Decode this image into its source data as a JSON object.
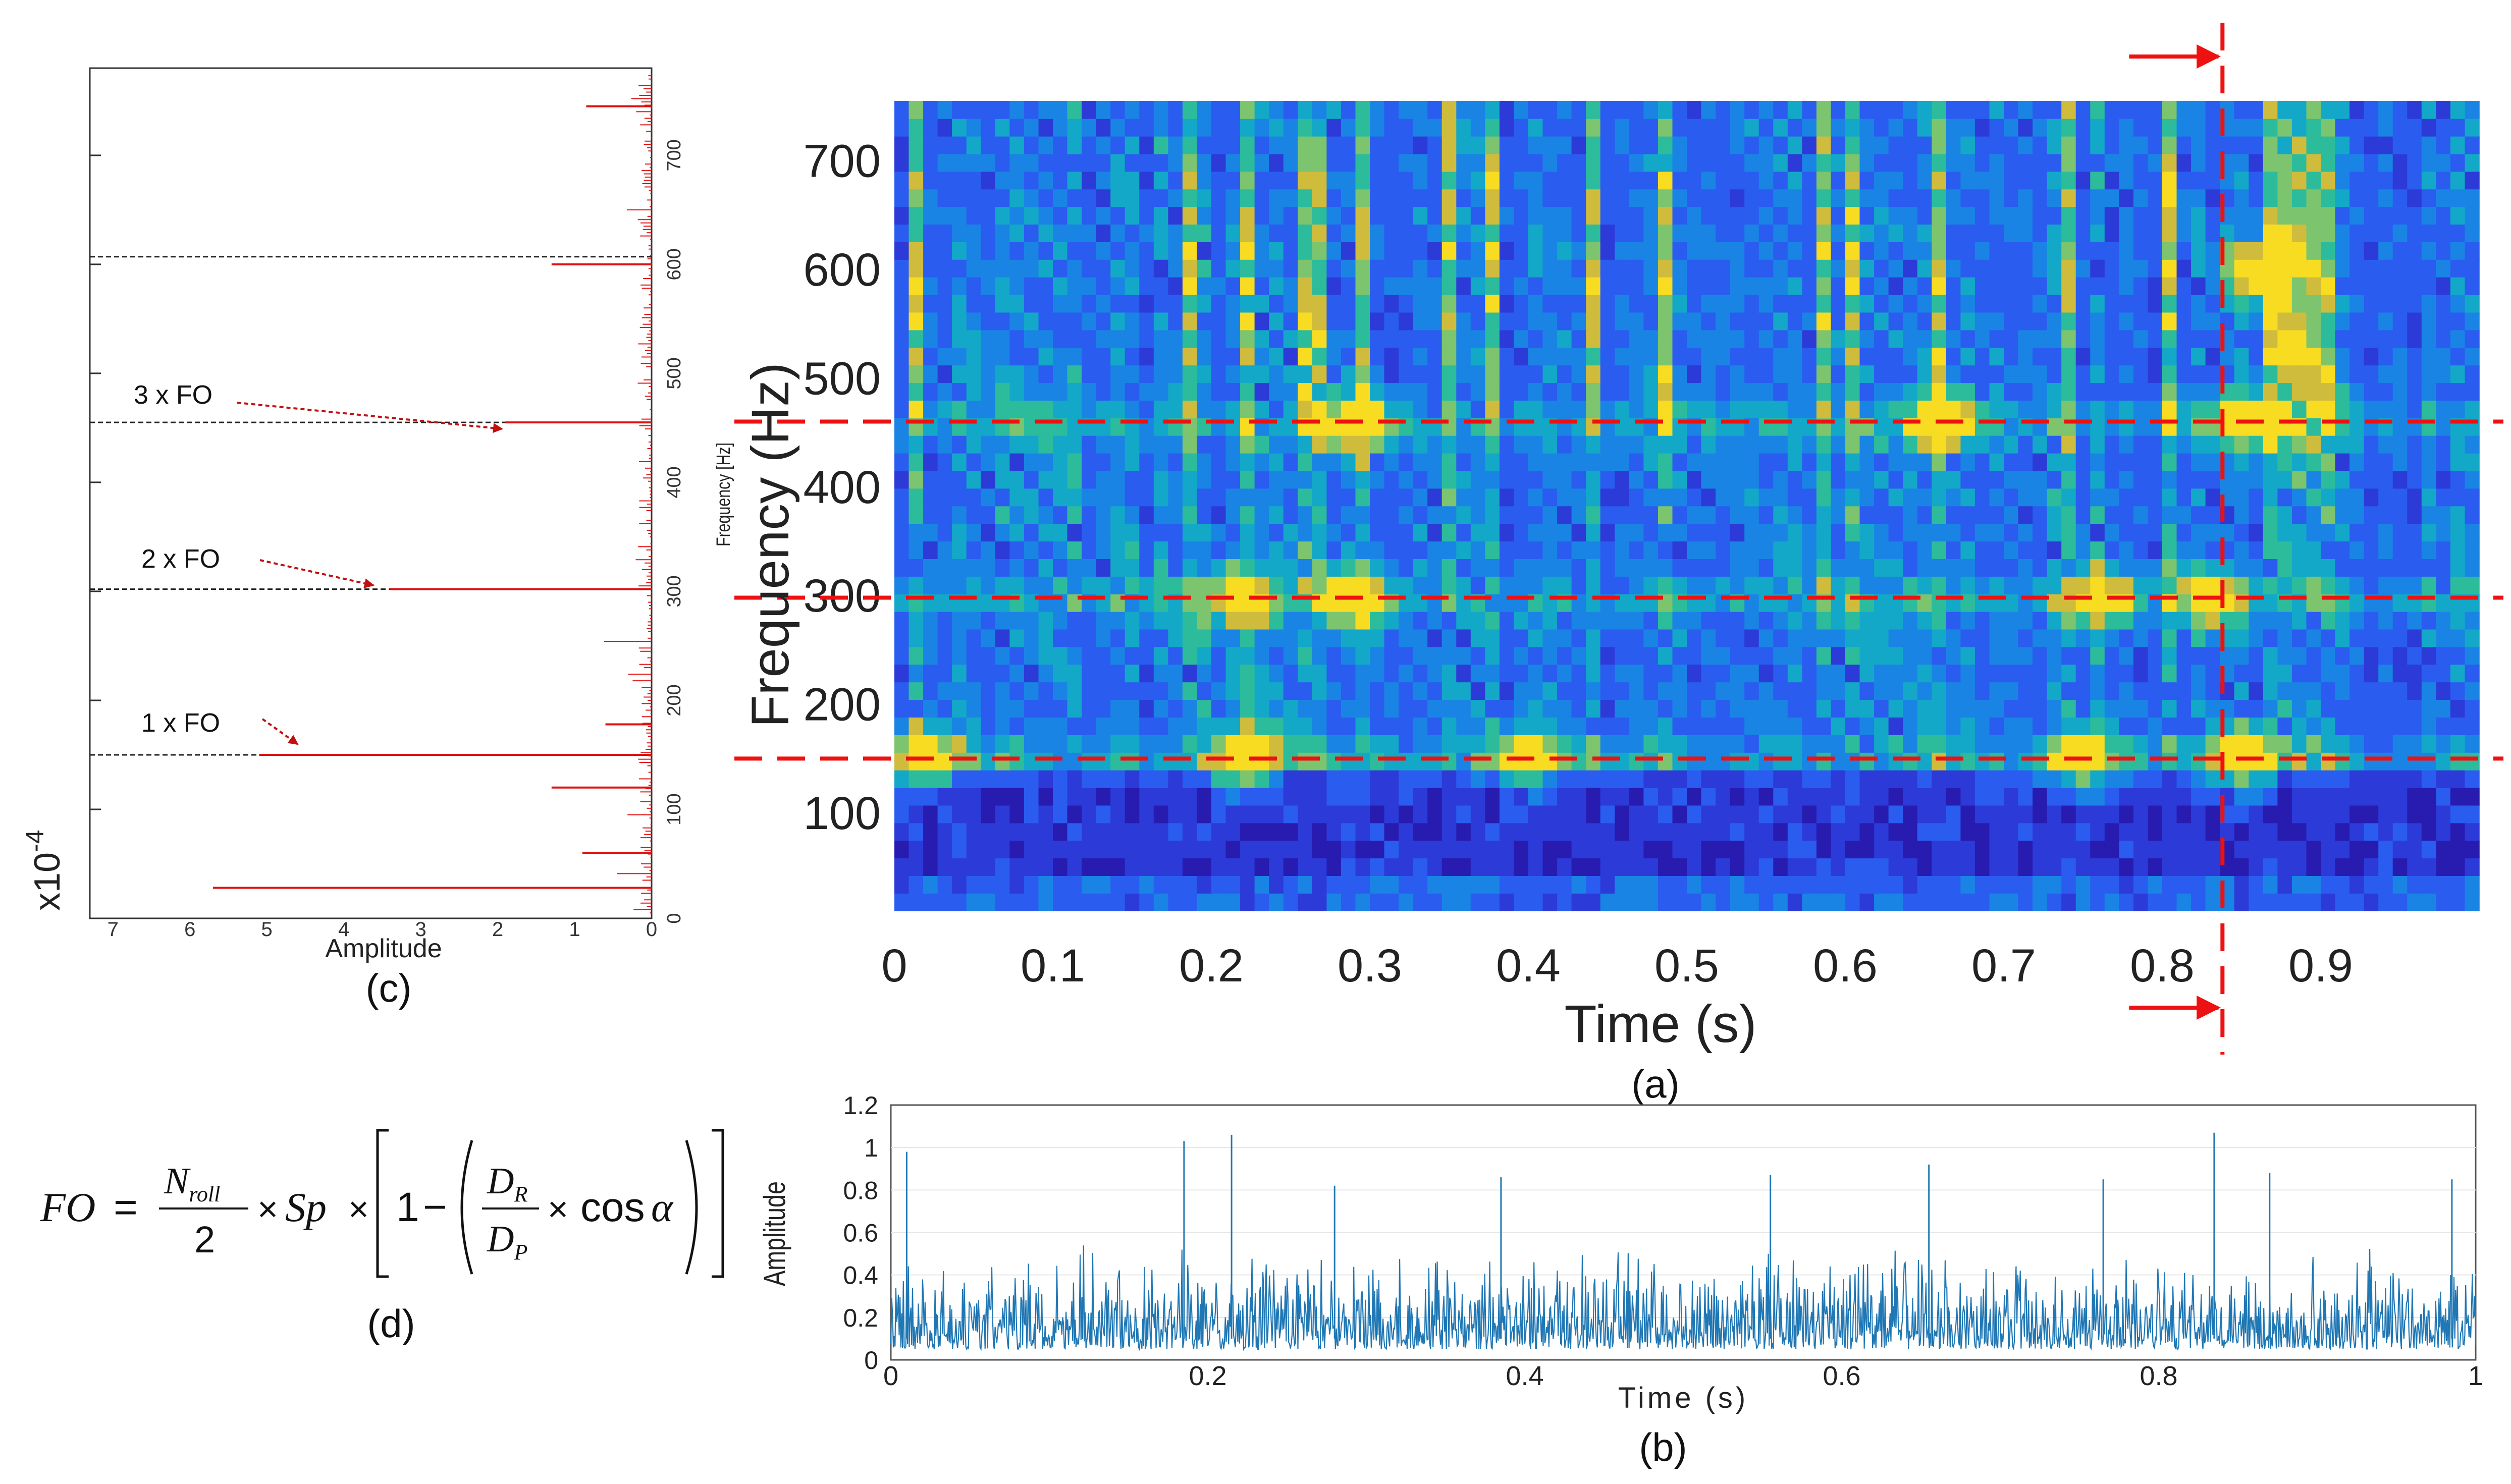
{
  "chart_data": [
    {
      "id": "a",
      "caption": "(a)",
      "type": "heatmap",
      "xlabel": "Time (s)",
      "ylabel": "Frequency (Hz)",
      "xlim": [
        0,
        1.0
      ],
      "ylim": [
        10,
        755
      ],
      "x_ticks": [
        "0",
        "0.1",
        "0.2",
        "0.3",
        "0.4",
        "0.5",
        "0.6",
        "0.7",
        "0.8",
        "0.9"
      ],
      "y_ticks": [
        "100",
        "200",
        "300",
        "400",
        "500",
        "600",
        "700"
      ],
      "colormap": "parula",
      "marker_lines": {
        "frequencies_hz": [
          150,
          298,
          460
        ],
        "time_s": 0.838
      },
      "hot_spots": [
        {
          "t": 0.02,
          "f": 150
        },
        {
          "t": 0.22,
          "f": 150
        },
        {
          "t": 0.4,
          "f": 150
        },
        {
          "t": 0.75,
          "f": 150
        },
        {
          "t": 0.85,
          "f": 150
        },
        {
          "t": 0.22,
          "f": 298
        },
        {
          "t": 0.29,
          "f": 298
        },
        {
          "t": 0.76,
          "f": 298
        },
        {
          "t": 0.83,
          "f": 298
        },
        {
          "t": 0.29,
          "f": 460
        },
        {
          "t": 0.66,
          "f": 460
        },
        {
          "t": 0.85,
          "f": 460
        },
        {
          "t": 0.86,
          "f": 600
        }
      ]
    },
    {
      "id": "b",
      "caption": "(b)",
      "type": "line",
      "xlabel": "Time (s)",
      "ylabel": "Amplitude",
      "xlim": [
        0,
        1
      ],
      "ylim": [
        0,
        1.2
      ],
      "x_ticks": [
        "0",
        "0.2",
        "0.4",
        "0.6",
        "0.8",
        "1"
      ],
      "y_ticks": [
        "0",
        "0.2",
        "0.4",
        "0.6",
        "0.8",
        "1",
        "1.2"
      ],
      "color": "#1f77b4",
      "baseline_range": [
        0.05,
        0.35
      ],
      "peaks": [
        {
          "x": 0.01,
          "y": 0.98
        },
        {
          "x": 0.185,
          "y": 1.03
        },
        {
          "x": 0.215,
          "y": 1.06
        },
        {
          "x": 0.28,
          "y": 0.82
        },
        {
          "x": 0.385,
          "y": 0.86
        },
        {
          "x": 0.555,
          "y": 0.87
        },
        {
          "x": 0.655,
          "y": 0.92
        },
        {
          "x": 0.765,
          "y": 0.85
        },
        {
          "x": 0.835,
          "y": 1.07
        },
        {
          "x": 0.87,
          "y": 0.88
        },
        {
          "x": 0.985,
          "y": 0.85
        }
      ]
    },
    {
      "id": "c",
      "caption": "(c)",
      "type": "bar",
      "orientation": "horizontal",
      "xlabel": "Amplitude",
      "ylabel": "Frequency [Hz]",
      "scale_label": "x10",
      "scale_exponent": "-4",
      "xlim": [
        7.3,
        0
      ],
      "ylim": [
        0,
        780
      ],
      "x_ticks": [
        "7",
        "6",
        "5",
        "4",
        "3",
        "2",
        "1",
        "0"
      ],
      "y_ticks": [
        "0",
        "100",
        "200",
        "300",
        "400",
        "500",
        "600",
        "700"
      ],
      "color": "#e01010",
      "fo_lines_hz": [
        150,
        302,
        455,
        607
      ],
      "annotations": [
        "1 x FO",
        "2 x FO",
        "3 x FO"
      ],
      "peaks": [
        {
          "f": 28,
          "a": 5.7
        },
        {
          "f": 150,
          "a": 5.1
        },
        {
          "f": 302,
          "a": 3.4
        },
        {
          "f": 455,
          "a": 1.9
        },
        {
          "f": 600,
          "a": 1.3
        },
        {
          "f": 745,
          "a": 0.85
        },
        {
          "f": 120,
          "a": 1.3
        },
        {
          "f": 178,
          "a": 0.6
        },
        {
          "f": 60,
          "a": 0.9
        }
      ]
    }
  ],
  "formula": {
    "caption": "(d)",
    "lhs": "FO",
    "n_roll": "N",
    "n_roll_sub": "roll",
    "half_denominator": "2",
    "sp": "Sp",
    "one": "1",
    "minus": "−",
    "dr": "D",
    "dr_sub": "R",
    "dp": "D",
    "dp_sub": "P",
    "cos": "cos",
    "alpha": "α"
  }
}
